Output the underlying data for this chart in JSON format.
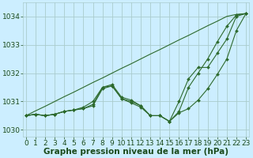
{
  "xlabel": "Graphe pression niveau de la mer (hPa)",
  "background_color": "#cceeff",
  "grid_color": "#aacccc",
  "line_color": "#2d6a2d",
  "marker_color": "#2d6a2d",
  "text_color": "#1a4a1a",
  "xlim": [
    -0.3,
    23.3
  ],
  "ylim": [
    1029.75,
    1034.5
  ],
  "yticks": [
    1030,
    1031,
    1032,
    1033,
    1034
  ],
  "xticks": [
    0,
    1,
    2,
    3,
    4,
    5,
    6,
    7,
    8,
    9,
    10,
    11,
    12,
    13,
    14,
    15,
    16,
    17,
    18,
    19,
    20,
    21,
    22,
    23
  ],
  "series": [
    {
      "y": [
        1030.5,
        1030.55,
        1030.5,
        1030.55,
        1030.65,
        1030.7,
        1030.75,
        1030.85,
        1031.45,
        1031.55,
        1031.1,
        1030.95,
        1030.8,
        1030.5,
        1030.5,
        1030.3,
        1030.6,
        1030.75,
        1031.05,
        1031.45,
        1031.95,
        1032.5,
        1033.5,
        1034.1
      ],
      "has_markers": true
    },
    {
      "y": [
        1030.5,
        1030.55,
        1030.5,
        1030.55,
        1030.65,
        1030.7,
        1030.75,
        1030.9,
        1031.5,
        1031.6,
        1031.15,
        1031.05,
        1030.85,
        1030.5,
        1030.5,
        1030.3,
        1031.0,
        1031.8,
        1032.2,
        1032.2,
        1032.7,
        1033.2,
        1034.0,
        1034.1
      ],
      "has_markers": true
    },
    {
      "y": [
        1030.5,
        1030.55,
        1030.5,
        1030.55,
        1030.65,
        1030.7,
        1030.8,
        1031.0,
        1031.5,
        1031.55,
        1031.1,
        1031.0,
        1030.85,
        1030.5,
        1030.5,
        1030.3,
        1030.65,
        1031.5,
        1032.0,
        1032.5,
        1033.1,
        1033.65,
        1034.05,
        1034.1
      ],
      "has_markers": true
    },
    {
      "y": [
        1030.5,
        1030.67,
        1030.83,
        1031.0,
        1031.17,
        1031.33,
        1031.5,
        1031.67,
        1031.83,
        1032.0,
        1032.17,
        1032.33,
        1032.5,
        1032.67,
        1032.83,
        1033.0,
        1033.17,
        1033.33,
        1033.5,
        1033.67,
        1033.83,
        1034.0,
        1034.07,
        1034.1
      ],
      "has_markers": false
    }
  ],
  "label_fontsize": 7.5,
  "tick_fontsize": 6.5
}
